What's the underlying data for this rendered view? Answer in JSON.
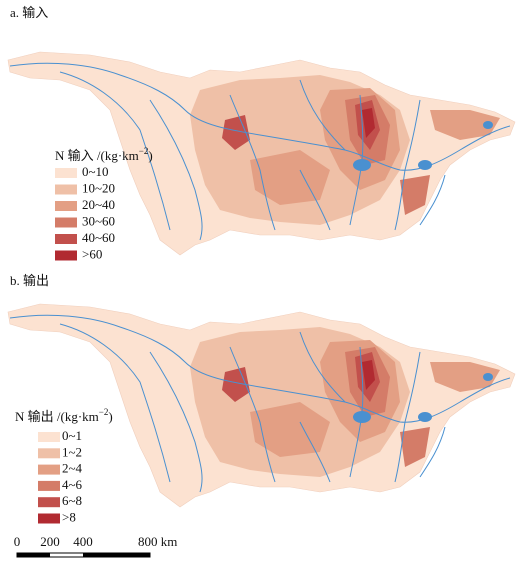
{
  "panels": [
    {
      "label": "a. 输入",
      "legend": {
        "title": {
          "text": "N 输入 /(kg·km",
          "sup": "−2",
          "close": ")"
        },
        "items": [
          {
            "label": "0~10",
            "color": "#fce2d1"
          },
          {
            "label": "10~20",
            "color": "#efc0a7"
          },
          {
            "label": "20~40",
            "color": "#e39f84"
          },
          {
            "label": "30~60",
            "color": "#d47c68"
          },
          {
            "label": "40~60",
            "color": "#c2504c"
          },
          {
            "label": ">60",
            "color": "#b12a31"
          }
        ]
      }
    },
    {
      "label": "b. 输出",
      "legend": {
        "title": {
          "text": "N 输出 /(kg·km",
          "sup": "−2",
          "close": ")"
        },
        "items": [
          {
            "label": "0~1",
            "color": "#fce2d1"
          },
          {
            "label": "1~2",
            "color": "#efc0a7"
          },
          {
            "label": "2~4",
            "color": "#e39f84"
          },
          {
            "label": "4~6",
            "color": "#d47c68"
          },
          {
            "label": "6~8",
            "color": "#c2504c"
          },
          {
            "label": ">8",
            "color": "#b12a31"
          }
        ]
      }
    }
  ],
  "scale_bar": {
    "ticks": [
      "0",
      "200",
      "400",
      "800 km"
    ]
  }
}
